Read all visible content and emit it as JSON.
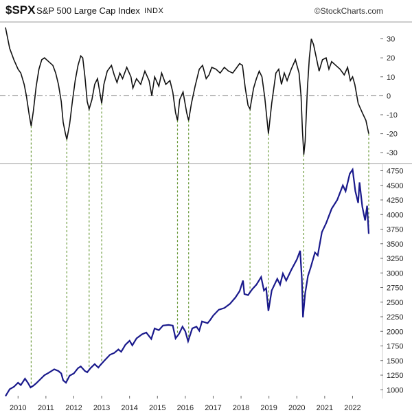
{
  "header": {
    "symbol": "$SPX",
    "name": "S&P 500 Large Cap Index",
    "exchange": "INDX",
    "watermark": "©StockCharts.com"
  },
  "colors": {
    "oscillator_line": "#111111",
    "price_line": "#1a1a8c",
    "guide_lines": "#6a9a3a",
    "zero_line": "#777777",
    "axis_text": "#222222"
  },
  "chart_data": [
    {
      "type": "line",
      "title": "",
      "series": [
        {
          "values": [
            [
              2009.55,
              36
            ],
            [
              2009.7,
              25
            ],
            [
              2009.85,
              19
            ],
            [
              2010.0,
              14
            ],
            [
              2010.1,
              12
            ],
            [
              2010.22,
              6
            ],
            [
              2010.3,
              0
            ],
            [
              2010.4,
              -10
            ],
            [
              2010.47,
              -16
            ],
            [
              2010.55,
              -8
            ],
            [
              2010.65,
              5
            ],
            [
              2010.75,
              14
            ],
            [
              2010.85,
              19
            ],
            [
              2010.95,
              20
            ],
            [
              2011.1,
              18
            ],
            [
              2011.25,
              16
            ],
            [
              2011.35,
              12
            ],
            [
              2011.45,
              6
            ],
            [
              2011.55,
              -3
            ],
            [
              2011.62,
              -14
            ],
            [
              2011.7,
              -20
            ],
            [
              2011.75,
              -23
            ],
            [
              2011.85,
              -15
            ],
            [
              2011.95,
              -3
            ],
            [
              2012.05,
              8
            ],
            [
              2012.15,
              16
            ],
            [
              2012.25,
              21
            ],
            [
              2012.32,
              20
            ],
            [
              2012.4,
              10
            ],
            [
              2012.48,
              -3
            ],
            [
              2012.55,
              -7
            ],
            [
              2012.65,
              -2
            ],
            [
              2012.75,
              6
            ],
            [
              2012.85,
              9
            ],
            [
              2012.92,
              3
            ],
            [
              2013.0,
              -4
            ],
            [
              2013.08,
              6
            ],
            [
              2013.2,
              13
            ],
            [
              2013.35,
              16
            ],
            [
              2013.45,
              11
            ],
            [
              2013.55,
              7
            ],
            [
              2013.65,
              12
            ],
            [
              2013.75,
              9
            ],
            [
              2013.9,
              15
            ],
            [
              2014.05,
              10
            ],
            [
              2014.12,
              4
            ],
            [
              2014.25,
              9
            ],
            [
              2014.4,
              6
            ],
            [
              2014.55,
              13
            ],
            [
              2014.7,
              8
            ],
            [
              2014.8,
              0
            ],
            [
              2014.9,
              10
            ],
            [
              2015.05,
              5
            ],
            [
              2015.15,
              12
            ],
            [
              2015.3,
              6
            ],
            [
              2015.45,
              8
            ],
            [
              2015.55,
              2
            ],
            [
              2015.65,
              -9
            ],
            [
              2015.72,
              -13
            ],
            [
              2015.8,
              -2
            ],
            [
              2015.92,
              2
            ],
            [
              2016.05,
              -9
            ],
            [
              2016.12,
              -13
            ],
            [
              2016.22,
              -4
            ],
            [
              2016.35,
              5
            ],
            [
              2016.5,
              14
            ],
            [
              2016.62,
              16
            ],
            [
              2016.75,
              9
            ],
            [
              2016.85,
              11
            ],
            [
              2016.95,
              15
            ],
            [
              2017.1,
              14
            ],
            [
              2017.25,
              12
            ],
            [
              2017.4,
              15
            ],
            [
              2017.55,
              13
            ],
            [
              2017.7,
              12
            ],
            [
              2017.85,
              15
            ],
            [
              2017.95,
              17
            ],
            [
              2018.05,
              16
            ],
            [
              2018.15,
              4
            ],
            [
              2018.25,
              -5
            ],
            [
              2018.32,
              -7
            ],
            [
              2018.45,
              4
            ],
            [
              2018.55,
              9
            ],
            [
              2018.65,
              13
            ],
            [
              2018.75,
              10
            ],
            [
              2018.85,
              -1
            ],
            [
              2018.98,
              -20
            ],
            [
              2019.1,
              -4
            ],
            [
              2019.25,
              12
            ],
            [
              2019.35,
              14
            ],
            [
              2019.45,
              6
            ],
            [
              2019.55,
              12
            ],
            [
              2019.65,
              8
            ],
            [
              2019.8,
              14
            ],
            [
              2019.95,
              19
            ],
            [
              2020.08,
              12
            ],
            [
              2020.15,
              0
            ],
            [
              2020.2,
              -18
            ],
            [
              2020.25,
              -31
            ],
            [
              2020.3,
              -24
            ],
            [
              2020.38,
              4
            ],
            [
              2020.45,
              20
            ],
            [
              2020.52,
              30
            ],
            [
              2020.6,
              27
            ],
            [
              2020.7,
              20
            ],
            [
              2020.8,
              13
            ],
            [
              2020.92,
              19
            ],
            [
              2021.05,
              20
            ],
            [
              2021.15,
              14
            ],
            [
              2021.25,
              18
            ],
            [
              2021.4,
              16
            ],
            [
              2021.55,
              14
            ],
            [
              2021.7,
              11
            ],
            [
              2021.82,
              15
            ],
            [
              2021.92,
              8
            ],
            [
              2022.0,
              10
            ],
            [
              2022.08,
              6
            ],
            [
              2022.2,
              -4
            ],
            [
              2022.35,
              -9
            ],
            [
              2022.48,
              -13
            ],
            [
              2022.58,
              -20
            ]
          ]
        }
      ],
      "ylim": [
        -35,
        36
      ],
      "yticks": [
        30,
        20,
        10,
        0,
        -10,
        -20,
        -30
      ],
      "reference_line": 0,
      "grid": false
    },
    {
      "type": "line",
      "series": [
        {
          "values": [
            [
              2009.55,
              890
            ],
            [
              2009.7,
              1010
            ],
            [
              2009.85,
              1050
            ],
            [
              2010.0,
              1120
            ],
            [
              2010.1,
              1080
            ],
            [
              2010.25,
              1190
            ],
            [
              2010.35,
              1120
            ],
            [
              2010.45,
              1040
            ],
            [
              2010.55,
              1070
            ],
            [
              2010.65,
              1110
            ],
            [
              2010.8,
              1180
            ],
            [
              2010.95,
              1250
            ],
            [
              2011.1,
              1290
            ],
            [
              2011.3,
              1350
            ],
            [
              2011.45,
              1320
            ],
            [
              2011.55,
              1280
            ],
            [
              2011.62,
              1160
            ],
            [
              2011.72,
              1120
            ],
            [
              2011.85,
              1240
            ],
            [
              2012.0,
              1280
            ],
            [
              2012.15,
              1370
            ],
            [
              2012.25,
              1400
            ],
            [
              2012.4,
              1320
            ],
            [
              2012.48,
              1300
            ],
            [
              2012.6,
              1370
            ],
            [
              2012.75,
              1440
            ],
            [
              2012.88,
              1380
            ],
            [
              2012.95,
              1420
            ],
            [
              2013.1,
              1500
            ],
            [
              2013.3,
              1600
            ],
            [
              2013.45,
              1630
            ],
            [
              2013.6,
              1690
            ],
            [
              2013.7,
              1650
            ],
            [
              2013.85,
              1770
            ],
            [
              2014.0,
              1840
            ],
            [
              2014.1,
              1760
            ],
            [
              2014.25,
              1880
            ],
            [
              2014.45,
              1950
            ],
            [
              2014.6,
              1980
            ],
            [
              2014.78,
              1870
            ],
            [
              2014.9,
              2050
            ],
            [
              2015.05,
              2020
            ],
            [
              2015.2,
              2100
            ],
            [
              2015.4,
              2110
            ],
            [
              2015.55,
              2100
            ],
            [
              2015.65,
              1880
            ],
            [
              2015.78,
              1960
            ],
            [
              2015.9,
              2080
            ],
            [
              2016.0,
              2000
            ],
            [
              2016.1,
              1830
            ],
            [
              2016.25,
              2050
            ],
            [
              2016.4,
              2080
            ],
            [
              2016.5,
              2010
            ],
            [
              2016.6,
              2170
            ],
            [
              2016.8,
              2140
            ],
            [
              2016.9,
              2200
            ],
            [
              2017.0,
              2270
            ],
            [
              2017.2,
              2370
            ],
            [
              2017.4,
              2400
            ],
            [
              2017.6,
              2470
            ],
            [
              2017.8,
              2580
            ],
            [
              2017.95,
              2690
            ],
            [
              2018.07,
              2870
            ],
            [
              2018.12,
              2640
            ],
            [
              2018.25,
              2620
            ],
            [
              2018.4,
              2720
            ],
            [
              2018.55,
              2800
            ],
            [
              2018.72,
              2930
            ],
            [
              2018.82,
              2700
            ],
            [
              2018.9,
              2740
            ],
            [
              2018.98,
              2350
            ],
            [
              2019.1,
              2700
            ],
            [
              2019.3,
              2900
            ],
            [
              2019.4,
              2800
            ],
            [
              2019.5,
              2990
            ],
            [
              2019.62,
              2870
            ],
            [
              2019.8,
              3050
            ],
            [
              2020.0,
              3230
            ],
            [
              2020.12,
              3380
            ],
            [
              2020.18,
              2900
            ],
            [
              2020.22,
              2240
            ],
            [
              2020.3,
              2650
            ],
            [
              2020.4,
              2950
            ],
            [
              2020.5,
              3100
            ],
            [
              2020.65,
              3350
            ],
            [
              2020.75,
              3300
            ],
            [
              2020.9,
              3700
            ],
            [
              2021.05,
              3850
            ],
            [
              2021.25,
              4100
            ],
            [
              2021.45,
              4250
            ],
            [
              2021.65,
              4500
            ],
            [
              2021.75,
              4400
            ],
            [
              2021.9,
              4700
            ],
            [
              2022.0,
              4770
            ],
            [
              2022.1,
              4400
            ],
            [
              2022.2,
              4200
            ],
            [
              2022.25,
              4550
            ],
            [
              2022.35,
              4130
            ],
            [
              2022.45,
              3900
            ],
            [
              2022.52,
              4150
            ],
            [
              2022.58,
              3670
            ]
          ]
        }
      ],
      "ylim": [
        850,
        4850
      ],
      "yticks": [
        4750,
        4500,
        4250,
        4000,
        3750,
        3500,
        3250,
        3000,
        2750,
        2500,
        2250,
        2000,
        1750,
        1500,
        1250,
        1000
      ],
      "xlim": [
        2009.55,
        2022.9
      ],
      "xticks": [
        2010,
        2011,
        2012,
        2013,
        2014,
        2015,
        2016,
        2017,
        2018,
        2019,
        2020,
        2021,
        2022
      ],
      "grid": false,
      "highlighted_lows": [
        2010.47,
        2011.75,
        2012.55,
        2013.0,
        2015.72,
        2016.12,
        2018.32,
        2018.98,
        2020.25,
        2022.58
      ]
    }
  ]
}
